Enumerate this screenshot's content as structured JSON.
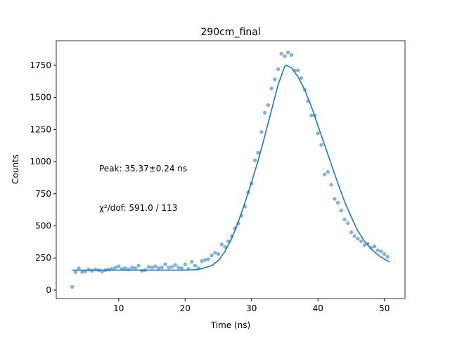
{
  "chart_data": {
    "type": "scatter",
    "title": "290cm_final",
    "xlabel": "Time (ns)",
    "ylabel": "Counts",
    "annotations": [
      "Peak: 35.37±0.24 ns",
      "χ²/dof: 591.0 / 113"
    ],
    "xlim": [
      0.6,
      53.1
    ],
    "ylim": [
      -66,
      1941
    ],
    "xticks": [
      10,
      20,
      30,
      40,
      50
    ],
    "yticks": [
      0,
      250,
      500,
      750,
      1000,
      1250,
      1500,
      1750
    ],
    "series": [
      {
        "type": "scatter",
        "color": "#1f77b4",
        "x": [
          3.0,
          3.5,
          4.0,
          4.5,
          5.0,
          5.5,
          6.0,
          6.5,
          7.0,
          7.5,
          8.0,
          8.5,
          9.0,
          9.5,
          10.0,
          10.5,
          11.0,
          11.5,
          12.0,
          12.5,
          13.0,
          13.5,
          14.0,
          14.5,
          15.0,
          15.5,
          16.0,
          16.5,
          17.0,
          17.5,
          18.0,
          18.5,
          19.0,
          19.5,
          20.0,
          20.5,
          21.0,
          21.5,
          22.0,
          22.5,
          23.0,
          23.5,
          24.0,
          24.5,
          25.0,
          25.5,
          26.0,
          26.5,
          27.0,
          27.5,
          28.0,
          28.5,
          29.0,
          29.5,
          30.0,
          30.5,
          31.0,
          31.5,
          32.0,
          32.5,
          33.0,
          33.5,
          34.0,
          34.5,
          35.0,
          35.5,
          36.0,
          36.5,
          37.0,
          37.5,
          38.0,
          38.5,
          39.0,
          39.5,
          40.0,
          40.5,
          41.0,
          41.5,
          42.0,
          42.5,
          43.0,
          43.5,
          44.0,
          44.5,
          45.0,
          45.5,
          46.0,
          46.5,
          47.0,
          47.5,
          48.0,
          48.5,
          49.0,
          49.5,
          50.0,
          50.5
        ],
        "values": [
          25,
          140,
          170,
          140,
          145,
          160,
          150,
          160,
          155,
          145,
          155,
          160,
          165,
          175,
          185,
          165,
          170,
          160,
          175,
          170,
          190,
          150,
          155,
          180,
          175,
          185,
          170,
          175,
          200,
          175,
          180,
          195,
          175,
          170,
          200,
          165,
          220,
          190,
          170,
          225,
          235,
          240,
          270,
          290,
          280,
          355,
          335,
          380,
          420,
          480,
          520,
          580,
          650,
          760,
          830,
          1010,
          1070,
          1230,
          1380,
          1440,
          1570,
          1640,
          1720,
          1840,
          1820,
          1850,
          1830,
          1710,
          1710,
          1650,
          1560,
          1470,
          1360,
          1360,
          1220,
          1130,
          900,
          920,
          820,
          710,
          680,
          620,
          550,
          520,
          450,
          420,
          400,
          380,
          350,
          360,
          330,
          340,
          310,
          300,
          280,
          260
        ]
      },
      {
        "type": "line",
        "color": "#1f77b4",
        "x": [
          3,
          20,
          22,
          24,
          25,
          26,
          27,
          28,
          29,
          30,
          31,
          32,
          33,
          34,
          35,
          35.2,
          36,
          37,
          38,
          39,
          40,
          41,
          42,
          43,
          44,
          45,
          46,
          47,
          48,
          49,
          50,
          50.8
        ],
        "values": [
          155,
          155,
          160,
          190,
          230,
          300,
          400,
          530,
          680,
          840,
          1010,
          1200,
          1400,
          1600,
          1740,
          1750,
          1730,
          1660,
          1560,
          1430,
          1280,
          1130,
          980,
          830,
          690,
          570,
          460,
          380,
          320,
          275,
          240,
          220
        ]
      }
    ]
  }
}
